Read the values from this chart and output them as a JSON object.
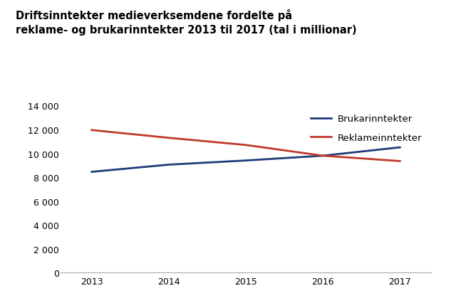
{
  "title_line1": "Driftsinntekter medieverksemdene fordelte på",
  "title_line2": "reklame- og brukarinntekter 2013 til 2017 (tal i millionar)",
  "years": [
    2013,
    2014,
    2015,
    2016,
    2017
  ],
  "brukarinntekter": [
    8450,
    9050,
    9400,
    9800,
    10500
  ],
  "reklameinntekter": [
    11950,
    11300,
    10700,
    9800,
    9350
  ],
  "brukar_color": "#1f3c7a",
  "reklame_color": "#c0392b",
  "brukar_label": "Brukarinntekter",
  "reklame_label": "Reklameinntekter",
  "ylim": [
    0,
    14000
  ],
  "yticks": [
    0,
    2000,
    4000,
    6000,
    8000,
    10000,
    12000,
    14000
  ],
  "background_color": "#ffffff",
  "line_width": 2.0,
  "title_fontsize": 10.5,
  "legend_fontsize": 9.5,
  "tick_fontsize": 9
}
